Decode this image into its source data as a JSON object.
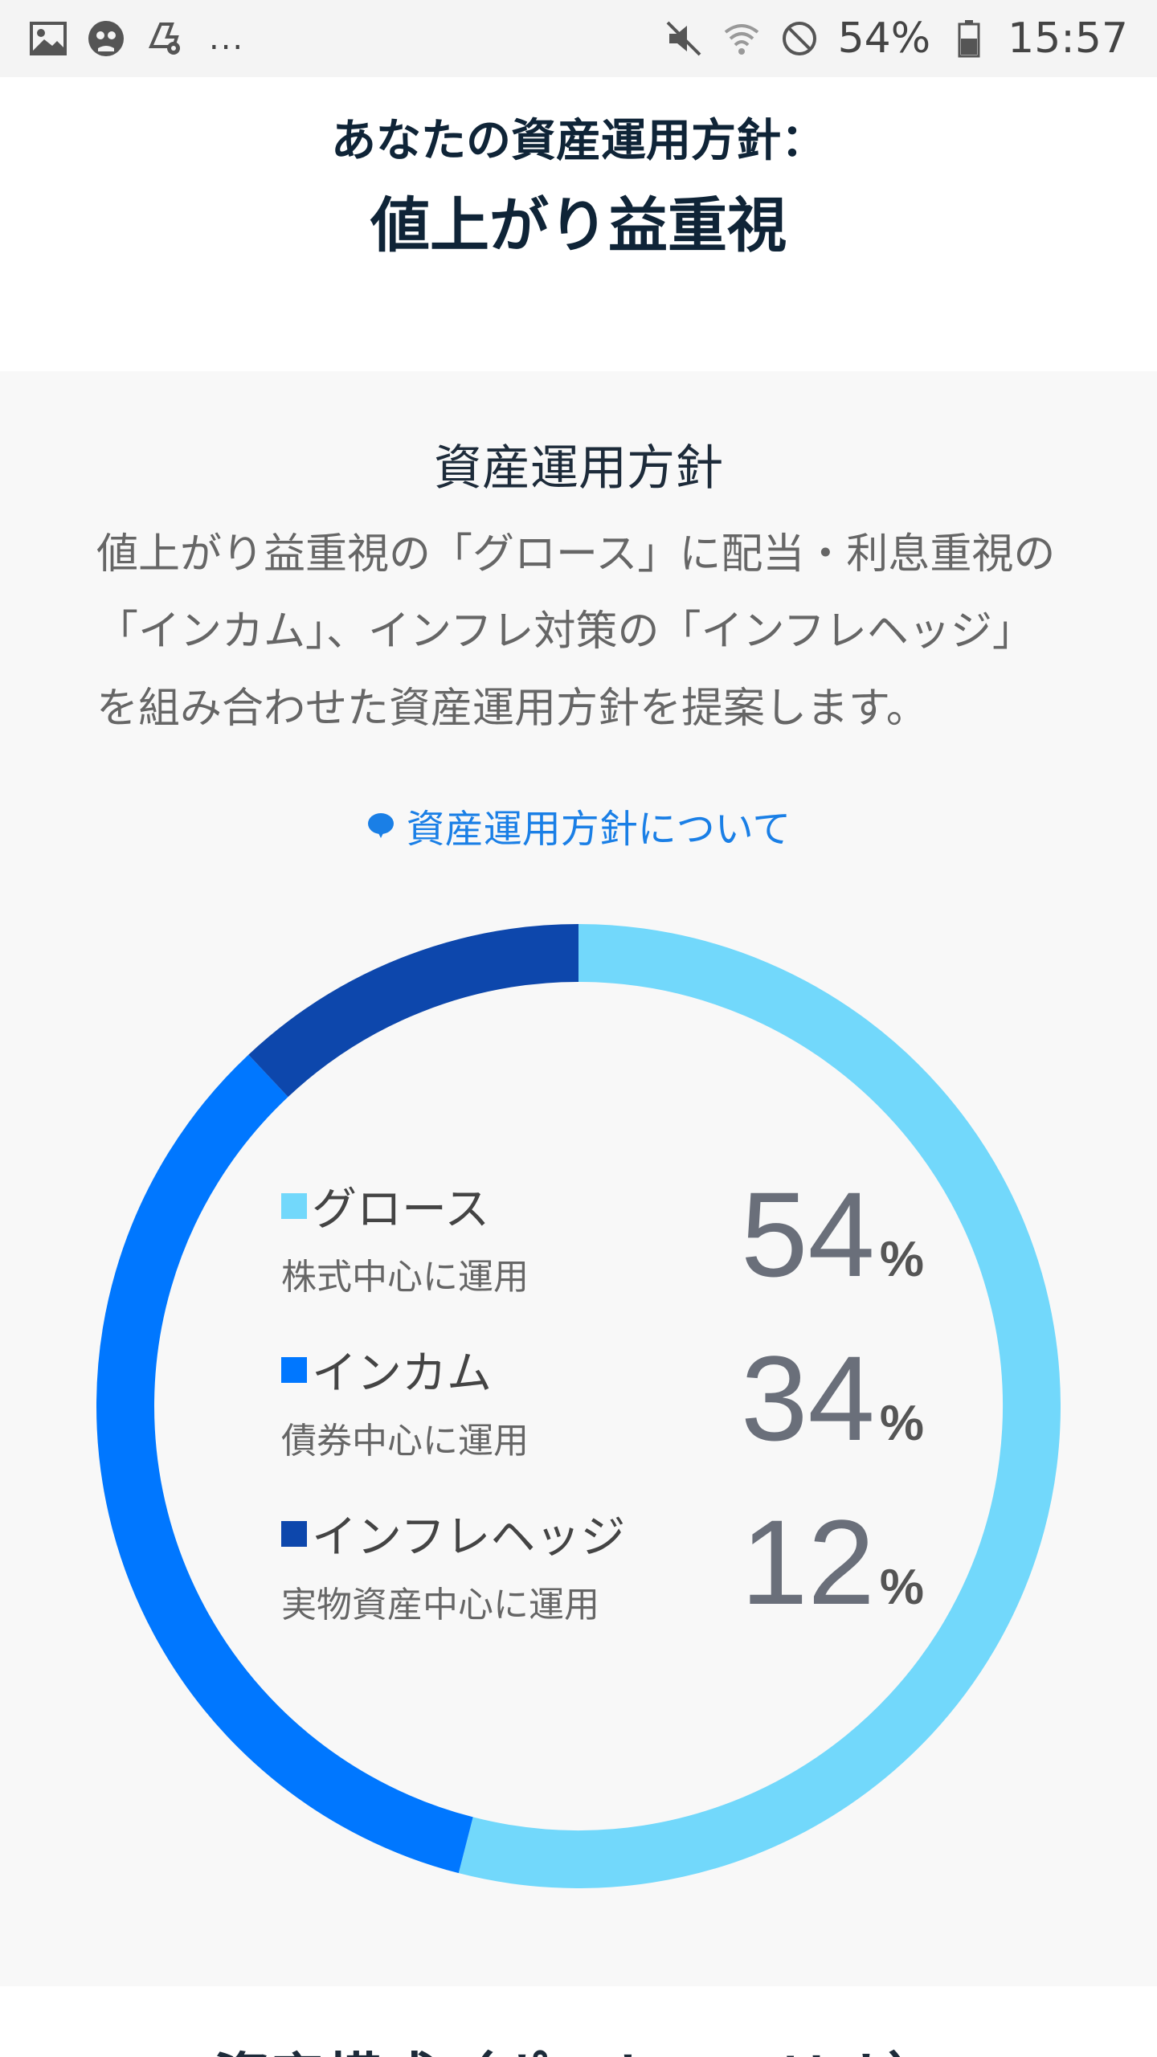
{
  "status_bar": {
    "left_icons": [
      "gallery-icon",
      "owl-icon",
      "settings-app-icon"
    ],
    "overflow": "...",
    "right_icons": [
      "mute-icon",
      "wifi-icon",
      "no-disturb-icon"
    ],
    "battery": "54%",
    "time": "15:57"
  },
  "header": {
    "label": "あなたの資産運用方針：",
    "policy": "値上がり益重視"
  },
  "panel": {
    "title": "資産運用方針",
    "description": "値上がり益重視の「グロース」に配当・利息重視の「インカム」、インフレ対策の「インフレヘッジ」を組み合わせた資産運用方針を提案します。",
    "about_link": "資産運用方針について"
  },
  "chart_data": {
    "type": "pie",
    "categories": [
      "グロース",
      "インカム",
      "インフレヘッジ"
    ],
    "values": [
      54,
      34,
      12
    ],
    "descriptions": [
      "株式中心に運用",
      "債券中心に運用",
      "実物資産中心に運用"
    ],
    "colors": [
      "#72d8fb",
      "#0077ff",
      "#0d47ac"
    ],
    "unit": "%"
  },
  "bottom": {
    "cut_text": "資産構成（ポートフォリオ）"
  }
}
